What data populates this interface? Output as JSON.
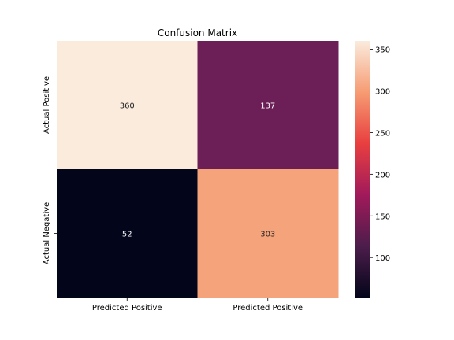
{
  "chart_data": {
    "type": "heatmap",
    "title": "Confusion Matrix",
    "row_labels": [
      "Actual Positive",
      "Actual Negative"
    ],
    "col_labels": [
      "Predicted Positive",
      "Predicted Positive"
    ],
    "values": [
      [
        360,
        137
      ],
      [
        52,
        303
      ]
    ],
    "colorbar": {
      "ticks": [
        100,
        150,
        200,
        250,
        300,
        350
      ],
      "tick_labels": [
        "100",
        "150",
        "200",
        "250",
        "300",
        "350"
      ]
    },
    "colors": {
      "scale": [
        "#03051a",
        "#4c1d4b",
        "#a11a5b",
        "#e83f3f",
        "#f69c73",
        "#faebdd"
      ],
      "cell_360": "#faebdd",
      "cell_137": "#6b1f56",
      "cell_52": "#03051a",
      "cell_303": "#f5a37a",
      "text_on_light": "#262626",
      "text_on_dark": "#ffffff"
    }
  }
}
